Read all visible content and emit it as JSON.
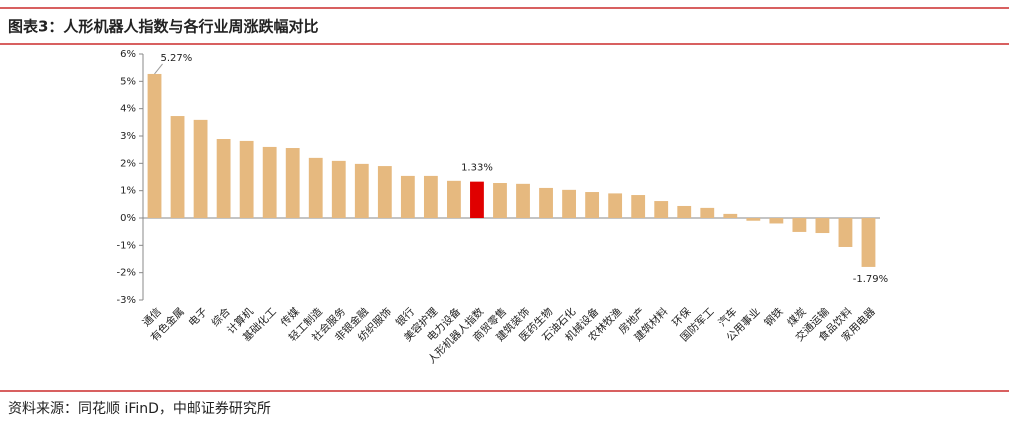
{
  "chart_data": {
    "type": "bar",
    "title": "图表3：人形机器人指数与各行业周涨跌幅对比",
    "source": "资料来源：同花顺 iFinD，中邮证券研究所",
    "categories": [
      "通信",
      "有色金属",
      "电子",
      "综合",
      "计算机",
      "基础化工",
      "传媒",
      "轻工制造",
      "社会服务",
      "非银金融",
      "纺织服饰",
      "银行",
      "美容护理",
      "电力设备",
      "人形机器人指数",
      "商贸零售",
      "建筑装饰",
      "医药生物",
      "石油石化",
      "机械设备",
      "农林牧渔",
      "房地产",
      "建筑材料",
      "环保",
      "国防军工",
      "汽车",
      "公用事业",
      "钢铁",
      "煤炭",
      "交通运输",
      "食品饮料",
      "家用电器"
    ],
    "values": [
      5.27,
      3.73,
      3.59,
      2.89,
      2.82,
      2.6,
      2.56,
      2.2,
      2.09,
      1.98,
      1.9,
      1.54,
      1.54,
      1.36,
      1.33,
      1.28,
      1.25,
      1.1,
      1.03,
      0.95,
      0.9,
      0.84,
      0.62,
      0.44,
      0.37,
      0.15,
      -0.1,
      -0.2,
      -0.51,
      -0.55,
      -1.06,
      -1.79
    ],
    "value_labels": [
      "5.27%",
      null,
      null,
      null,
      null,
      null,
      null,
      null,
      null,
      null,
      null,
      null,
      null,
      null,
      "1.33%",
      null,
      null,
      null,
      null,
      null,
      null,
      null,
      null,
      null,
      null,
      null,
      null,
      null,
      null,
      null,
      null,
      "-1.79%"
    ],
    "colors": [
      "#e6b97f",
      "#e6b97f",
      "#e6b97f",
      "#e6b97f",
      "#e6b97f",
      "#e6b97f",
      "#e6b97f",
      "#e6b97f",
      "#e6b97f",
      "#e6b97f",
      "#e6b97f",
      "#e6b97f",
      "#e6b97f",
      "#e6b97f",
      "#e00000",
      "#e6b97f",
      "#e6b97f",
      "#e6b97f",
      "#e6b97f",
      "#e6b97f",
      "#e6b97f",
      "#e6b97f",
      "#e6b97f",
      "#e6b97f",
      "#e6b97f",
      "#e6b97f",
      "#e6b97f",
      "#e6b97f",
      "#e6b97f",
      "#e6b97f",
      "#e6b97f",
      "#e6b97f"
    ],
    "ylim": [
      -3,
      6
    ],
    "yticks": [
      {
        "value": -3,
        "label": "-3%"
      },
      {
        "value": -2,
        "label": "-2%"
      },
      {
        "value": -1,
        "label": "-1%"
      },
      {
        "value": 0,
        "label": "0%"
      },
      {
        "value": 1,
        "label": "1%"
      },
      {
        "value": 2,
        "label": "2%"
      },
      {
        "value": 3,
        "label": "3%"
      },
      {
        "value": 4,
        "label": "4%"
      },
      {
        "value": 5,
        "label": "5%"
      },
      {
        "value": 6,
        "label": "6%"
      }
    ],
    "grid": false
  }
}
